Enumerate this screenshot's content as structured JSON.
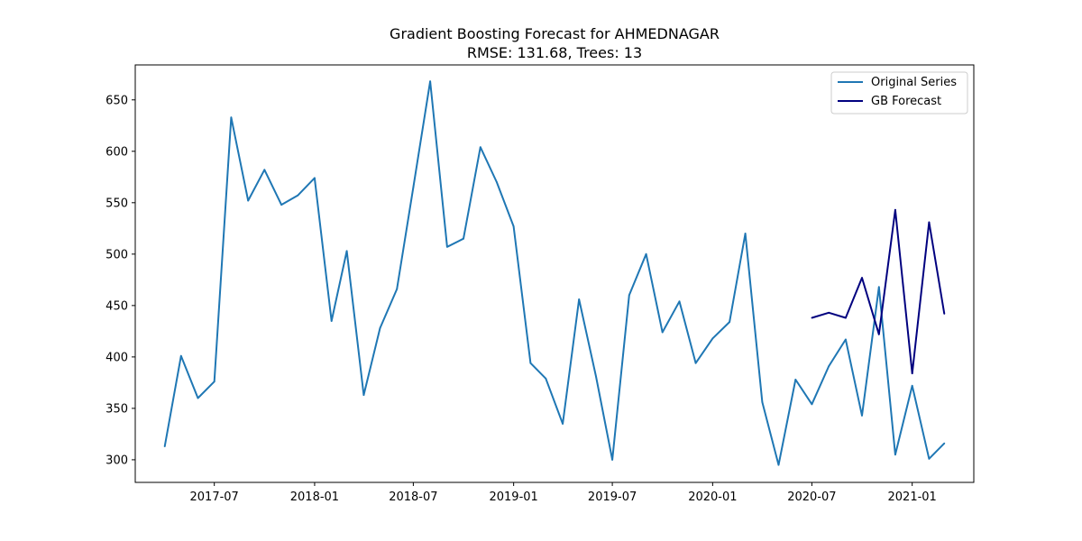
{
  "chart_data": {
    "type": "line",
    "title": "Gradient Boosting Forecast for AHMEDNAGAR",
    "subtitle": "RMSE: 131.68, Trees: 13",
    "xlabel": "",
    "ylabel": "",
    "xlim": [
      "2017-02-06",
      "2021-04-24"
    ],
    "ylim": [
      278,
      684
    ],
    "x_ticks": [
      "2017-07",
      "2018-01",
      "2018-07",
      "2019-01",
      "2019-07",
      "2020-01",
      "2020-07",
      "2021-01"
    ],
    "y_ticks": [
      300,
      350,
      400,
      450,
      500,
      550,
      600,
      650
    ],
    "grid": false,
    "legend_position": "top-right",
    "series": [
      {
        "name": "Original Series",
        "color": "#1f77b4",
        "points": [
          [
            "2017-04",
            313
          ],
          [
            "2017-05",
            401
          ],
          [
            "2017-06",
            360
          ],
          [
            "2017-07",
            376
          ],
          [
            "2017-08",
            633
          ],
          [
            "2017-09",
            552
          ],
          [
            "2017-10",
            582
          ],
          [
            "2017-11",
            548
          ],
          [
            "2017-12",
            557
          ],
          [
            "2018-01",
            574
          ],
          [
            "2018-02",
            435
          ],
          [
            "2018-03",
            503
          ],
          [
            "2018-04",
            363
          ],
          [
            "2018-05",
            428
          ],
          [
            "2018-06",
            466
          ],
          [
            "2018-07",
            565
          ],
          [
            "2018-08",
            668
          ],
          [
            "2018-09",
            507
          ],
          [
            "2018-10",
            515
          ],
          [
            "2018-11",
            604
          ],
          [
            "2018-12",
            570
          ],
          [
            "2019-01",
            527
          ],
          [
            "2019-02",
            394
          ],
          [
            "2019-03",
            379
          ],
          [
            "2019-04",
            335
          ],
          [
            "2019-05",
            456
          ],
          [
            "2019-06",
            381
          ],
          [
            "2019-07",
            300
          ],
          [
            "2019-08",
            460
          ],
          [
            "2019-09",
            500
          ],
          [
            "2019-10",
            424
          ],
          [
            "2019-11",
            454
          ],
          [
            "2019-12",
            394
          ],
          [
            "2020-01",
            418
          ],
          [
            "2020-02",
            434
          ],
          [
            "2020-03",
            520
          ],
          [
            "2020-04",
            356
          ],
          [
            "2020-05",
            295
          ],
          [
            "2020-06",
            378
          ],
          [
            "2020-07",
            354
          ],
          [
            "2020-08",
            391
          ],
          [
            "2020-09",
            417
          ],
          [
            "2020-10",
            343
          ],
          [
            "2020-11",
            468
          ],
          [
            "2020-12",
            305
          ],
          [
            "2021-01",
            372
          ],
          [
            "2021-02",
            301
          ],
          [
            "2021-03",
            316
          ]
        ]
      },
      {
        "name": "GB Forecast",
        "color": "#00007f",
        "points": [
          [
            "2020-07",
            438
          ],
          [
            "2020-08",
            443
          ],
          [
            "2020-09",
            438
          ],
          [
            "2020-10",
            477
          ],
          [
            "2020-11",
            422
          ],
          [
            "2020-12",
            543
          ],
          [
            "2021-01",
            384
          ],
          [
            "2021-02",
            531
          ],
          [
            "2021-03",
            442
          ]
        ]
      }
    ]
  }
}
